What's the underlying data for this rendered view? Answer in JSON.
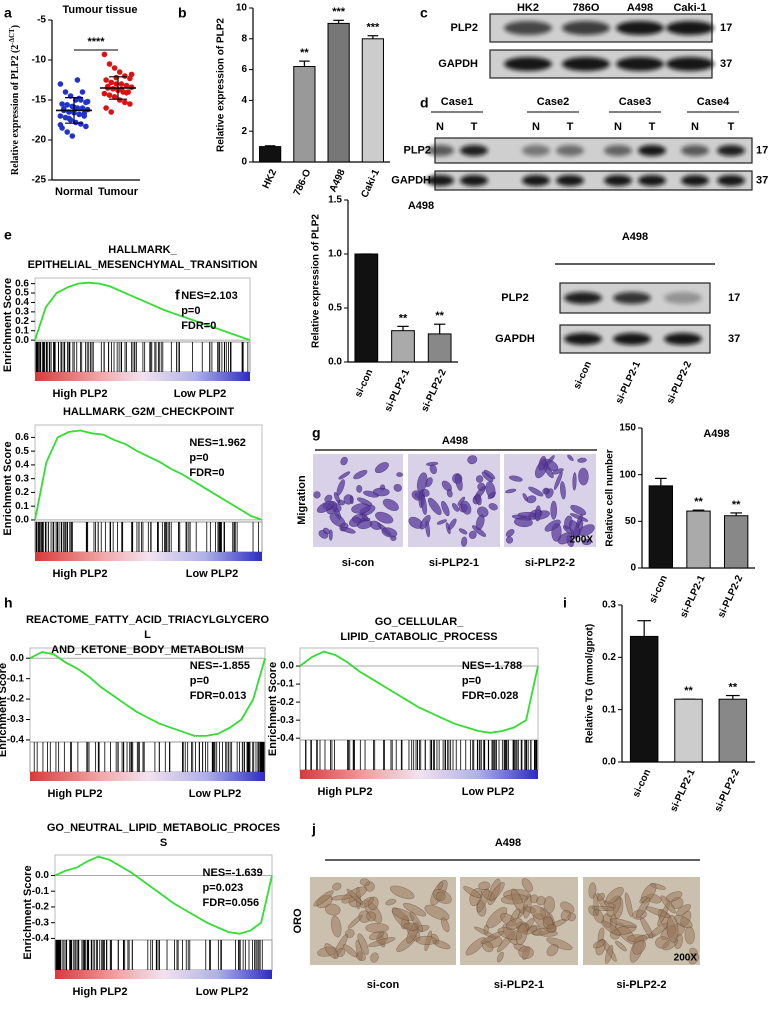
{
  "panel_labels": [
    "a",
    "b",
    "c",
    "d",
    "e",
    "f",
    "g",
    "h",
    "i",
    "j"
  ],
  "chart_data": [
    {
      "type": "strip",
      "title": "Tumour tissue",
      "y_label": [
        "Relative expression of PLP2 (2",
        "-ΔCT",
        ")"
      ],
      "categories": [
        "Normal",
        "Tumour"
      ],
      "series": [
        {
          "color": "#2233cc",
          "values": [
            -13,
            -14,
            -14.5,
            -15,
            -15,
            -15.3,
            -15.5,
            -15.6,
            -15.8,
            -16,
            -16,
            -16.2,
            -16.3,
            -16.5,
            -16.6,
            -16.8,
            -17,
            -17,
            -17.2,
            -17.5,
            -17.8,
            -18,
            -18.3,
            -18.5,
            -19,
            -19.5,
            -12.5,
            -14,
            -15.2,
            -16.1,
            -17.3,
            -15.9,
            -14.8,
            -16.7,
            -18.1
          ],
          "mean": -16.3,
          "sd": 1.6
        },
        {
          "color": "#dd1111",
          "values": [
            -9.3,
            -10.5,
            -11,
            -11.5,
            -12,
            -12.3,
            -12.5,
            -12.8,
            -13,
            -13,
            -13.2,
            -13.4,
            -13.5,
            -13.6,
            -13.8,
            -14,
            -14,
            -14.2,
            -14.4,
            -14.6,
            -15,
            -15.3,
            -15.5,
            -16,
            -16.5,
            -12.2,
            -13.7,
            -14.1,
            -11.8,
            -13.3
          ],
          "mean": -13.5,
          "sd": 1.4
        }
      ],
      "annotation": "****",
      "ylim": [
        -25,
        -5
      ],
      "yticks": [
        -25,
        -20,
        -15,
        -10,
        -5
      ]
    },
    {
      "type": "bar",
      "y_label": "Relative expression of PLP2",
      "categories": [
        "HK2",
        "786-O",
        "A498",
        "Caki-1"
      ],
      "values": [
        1,
        6.2,
        9.0,
        8.0
      ],
      "errors": [
        0.05,
        0.35,
        0.2,
        0.2
      ],
      "significance": [
        null,
        "**",
        "***",
        "***"
      ],
      "colors": [
        "#111111",
        "#999999",
        "#777777",
        "#cccccc"
      ],
      "ylim": [
        0,
        10
      ],
      "yticks": [
        0,
        2,
        4,
        6,
        8,
        10
      ]
    },
    {
      "type": "gsea",
      "title_lines": [
        "HALLMARK_",
        "EPITHELIAL_MESENCHYMAL_TRANSITION"
      ],
      "y_label": "Enrichment Score",
      "color": "#33dd33",
      "values": [
        0,
        0.35,
        0.5,
        0.56,
        0.6,
        0.61,
        0.6,
        0.57,
        0.52,
        0.47,
        0.42,
        0.37,
        0.32,
        0.28,
        0.24,
        0.2,
        0.16,
        0.12,
        0.08,
        0.04,
        0.0
      ],
      "stats": [
        "NES=2.103",
        "p=0",
        "FDR=0"
      ],
      "x_labels": [
        "High PLP2",
        "Low PLP2"
      ],
      "ylim": [
        -0.02,
        0.66
      ],
      "yticks": [
        {
          "value": 0,
          "label": "0.0"
        },
        0.1,
        0.2,
        0.3,
        0.4,
        0.5,
        0.6
      ]
    },
    {
      "type": "gsea",
      "title_lines": [
        "HALLMARK_G2M_CHECKPOINT"
      ],
      "y_label": "Enrichment Score",
      "color": "#33dd33",
      "values": [
        0,
        0.42,
        0.6,
        0.64,
        0.65,
        0.63,
        0.62,
        0.58,
        0.55,
        0.5,
        0.46,
        0.42,
        0.37,
        0.33,
        0.28,
        0.23,
        0.18,
        0.13,
        0.08,
        0.03,
        0.0
      ],
      "stats": [
        "NES=1.962",
        "p=0",
        "FDR=0"
      ],
      "x_labels": [
        "High PLP2",
        "Low PLP2"
      ],
      "ylim": [
        -0.015,
        0.69
      ],
      "yticks": [
        {
          "value": 0,
          "label": "0.0"
        },
        0.1,
        0.2,
        0.3,
        0.4,
        0.5,
        0.6
      ]
    },
    {
      "type": "bar",
      "title": "A498",
      "y_label": "Relative expression of PLP2",
      "categories": [
        "si-con",
        "si-PLP2-1",
        "si-PLP2-2"
      ],
      "values": [
        1.0,
        0.29,
        0.26
      ],
      "errors": [
        0,
        0.04,
        0.09
      ],
      "significance": [
        null,
        "**",
        "**"
      ],
      "colors": [
        "#111111",
        "#aaaaaa",
        "#888888"
      ],
      "ylim": [
        0,
        1.5
      ],
      "yticks": [
        {
          "value": 0,
          "label": "0.0"
        },
        0.5,
        {
          "value": 1,
          "label": "1.0"
        },
        1.5
      ]
    },
    {
      "type": "bar",
      "title": "A498",
      "y_label": "Relative cell number",
      "categories": [
        "si-con",
        "si-PLP2-1",
        "si-PLP2-2"
      ],
      "values": [
        88,
        61,
        56
      ],
      "errors": [
        8,
        1,
        3
      ],
      "significance": [
        null,
        "**",
        "**"
      ],
      "colors": [
        "#111111",
        "#aaaaaa",
        "#888888"
      ],
      "ylim": [
        0,
        150
      ],
      "yticks": [
        0,
        50,
        100,
        150
      ]
    },
    {
      "type": "gsea",
      "title_lines": [
        "REACTOME_FATTY_ACID_TRIACYLGLYCERO",
        "L",
        "AND_KETONE_BODY_METABOLISM"
      ],
      "y_label": "Enrichment Score",
      "color": "#33dd33",
      "values": [
        0,
        0.03,
        0.02,
        -0.02,
        -0.05,
        -0.09,
        -0.14,
        -0.18,
        -0.22,
        -0.26,
        -0.29,
        -0.32,
        -0.34,
        -0.36,
        -0.38,
        -0.38,
        -0.37,
        -0.34,
        -0.3,
        -0.2,
        0.0
      ],
      "stats": [
        "NES=-1.855",
        "p=0",
        "FDR=0.013"
      ],
      "x_labels": [
        "High PLP2",
        "Low PLP2"
      ],
      "ylim": [
        -0.41,
        0.05
      ],
      "yticks": [
        {
          "value": 0,
          "label": "0.0"
        },
        -0.1,
        -0.2,
        -0.3,
        -0.4
      ]
    },
    {
      "type": "gsea",
      "title_lines": [
        "GO_CELLULAR_",
        "LIPID_CATABOLIC_PROCESS"
      ],
      "y_label": "Enrichment Score",
      "color": "#33dd33",
      "values": [
        0,
        0.05,
        0.08,
        0.06,
        0.02,
        -0.03,
        -0.07,
        -0.11,
        -0.15,
        -0.19,
        -0.23,
        -0.26,
        -0.29,
        -0.32,
        -0.34,
        -0.36,
        -0.37,
        -0.36,
        -0.34,
        -0.3,
        0.0
      ],
      "stats": [
        "NES=-1.788",
        "p=0",
        "FDR=0.028"
      ],
      "x_labels": [
        "High PLP2",
        "Low PLP2"
      ],
      "ylim": [
        -0.41,
        0.1
      ],
      "yticks": [
        {
          "value": 0,
          "label": "0.0"
        },
        -0.1,
        -0.2,
        -0.3,
        -0.4
      ]
    },
    {
      "type": "bar",
      "y_label": "Relative TG (mmol/gprot)",
      "categories": [
        "si-con",
        "si-PLP2-1",
        "si-PLP2-2"
      ],
      "values": [
        0.24,
        0.12,
        0.12
      ],
      "errors": [
        0.03,
        0,
        0.007
      ],
      "significance": [
        null,
        "**",
        "**"
      ],
      "colors": [
        "#111111",
        "#cccccc",
        "#888888"
      ],
      "ylim": [
        0,
        0.3
      ],
      "yticks": [
        {
          "value": 0,
          "label": "0.0"
        },
        0.1,
        0.2,
        0.3
      ]
    },
    {
      "type": "gsea",
      "title_lines": [
        "GO_NEUTRAL_LIPID_METABOLIC_PROCES",
        "S"
      ],
      "y_label": "Enrichment Score",
      "color": "#33dd33",
      "values": [
        0,
        0.03,
        0.05,
        0.09,
        0.12,
        0.1,
        0.06,
        0.02,
        -0.03,
        -0.08,
        -0.13,
        -0.18,
        -0.22,
        -0.26,
        -0.3,
        -0.33,
        -0.36,
        -0.37,
        -0.35,
        -0.3,
        0.0
      ],
      "stats": [
        "NES=-1.639",
        "p=0.023",
        "FDR=0.056"
      ],
      "x_labels": [
        "High PLP2",
        "Low PLP2"
      ],
      "ylim": [
        -0.41,
        0.13
      ],
      "yticks": [
        {
          "value": 0,
          "label": "0.0"
        },
        -0.1,
        -0.2,
        -0.3,
        -0.4
      ]
    }
  ],
  "blots": {
    "c": {
      "lanes": [
        "HK2",
        "786O",
        "A498",
        "Caki-1"
      ],
      "rows": [
        {
          "name": "PLP2",
          "kda": 17
        },
        {
          "name": "GAPDH",
          "kda": 37
        }
      ]
    },
    "d": {
      "cases": [
        "Case1",
        "Case2",
        "Case3",
        "Case4"
      ],
      "lanes": [
        "N",
        "T",
        "N",
        "T",
        "N",
        "T",
        "N",
        "T"
      ],
      "rows": [
        {
          "name": "PLP2",
          "kda": 17
        },
        {
          "name": "GAPDH",
          "kda": 37
        }
      ]
    },
    "f": {
      "title": "A498",
      "lanes": [
        "si-con",
        "si-PLP2-1",
        "si-PLP2-2"
      ],
      "rows": [
        {
          "name": "PLP2",
          "kda": 17
        },
        {
          "name": "GAPDH",
          "kda": 37
        }
      ]
    }
  },
  "images": {
    "g": {
      "title": "A498",
      "row_label": "Migration",
      "captions": [
        "si-con",
        "si-PLP2-1",
        "si-PLP2-2"
      ],
      "magnification": "200X"
    },
    "j": {
      "title": "A498",
      "row_label": "ORO",
      "captions": [
        "si-con",
        "si-PLP2-1",
        "si-PLP2-2"
      ],
      "magnification": "200X"
    }
  }
}
